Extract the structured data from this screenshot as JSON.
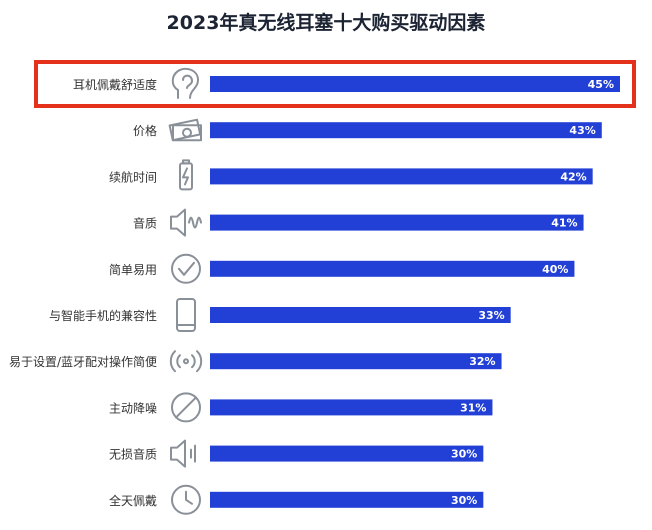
{
  "chart_data": {
    "type": "bar",
    "orientation": "horizontal",
    "title": "2023年真无线耳塞十大购买驱动因素",
    "categories": [
      "耳机佩戴舒适度",
      "价格",
      "续航时间",
      "音质",
      "简单易用",
      "与智能手机的兼容性",
      "易于设置/蓝牙配对操作简便",
      "主动降噪",
      "无损音质",
      "全天佩戴"
    ],
    "values": [
      45,
      43,
      42,
      41,
      40,
      33,
      32,
      31,
      30,
      30
    ],
    "value_labels": [
      "45%",
      "43%",
      "42%",
      "41%",
      "40%",
      "33%",
      "32%",
      "31%",
      "30%",
      "30%"
    ],
    "icons": [
      "ear-head-icon",
      "money-icon",
      "battery-icon",
      "speaker-wave-icon",
      "check-circle-icon",
      "smartphone-icon",
      "pairing-signal-icon",
      "no-noise-icon",
      "speaker-icon",
      "clock-icon"
    ],
    "highlighted_index": 0,
    "xlim": [
      0,
      45
    ],
    "colors": {
      "bar": "#2340d6",
      "highlight_border": "#e3311b",
      "icon": "#8a9098",
      "label": "#333333",
      "title": "#1c2333"
    }
  }
}
